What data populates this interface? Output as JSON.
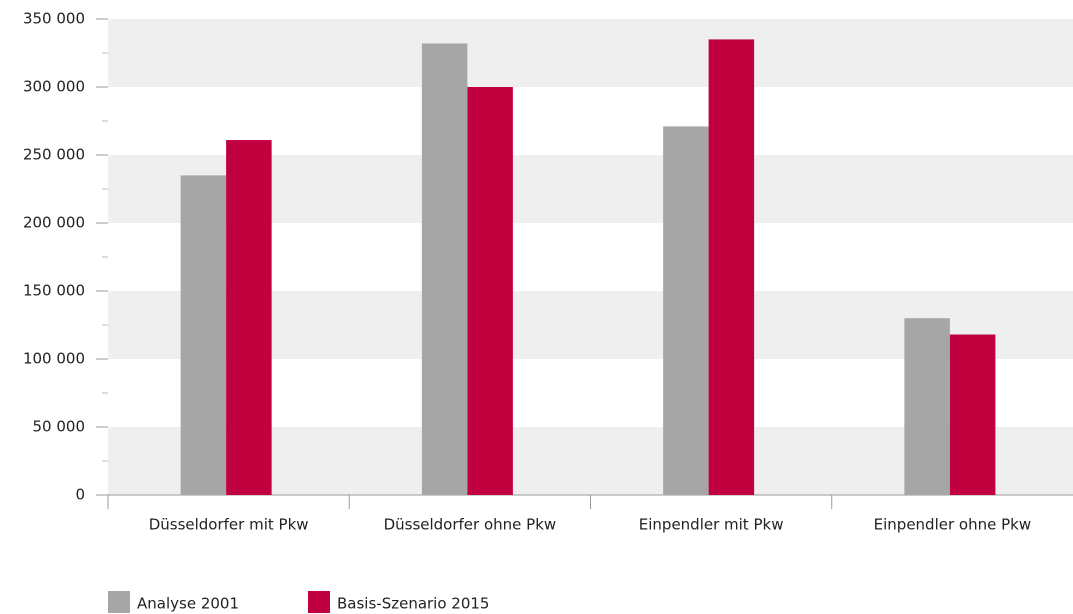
{
  "chart_data": {
    "type": "bar",
    "categories": [
      "Düsseldorfer mit Pkw",
      "Düsseldorfer ohne Pkw",
      "Einpendler mit Pkw",
      "Einpendler ohne Pkw"
    ],
    "series": [
      {
        "name": "Analyse 2001",
        "color": "#a6a6a6",
        "values": [
          235000,
          332000,
          271000,
          130000
        ]
      },
      {
        "name": "Basis-Szenario 2015",
        "color": "#c0003f",
        "values": [
          261000,
          300000,
          335000,
          118000
        ]
      }
    ],
    "ylim": [
      0,
      350000
    ],
    "yticks": [
      0,
      {
        "value": 50000,
        "label": "50 000"
      },
      {
        "value": 100000,
        "label": "100 000"
      },
      {
        "value": 150000,
        "label": "150 000"
      },
      {
        "value": 200000,
        "label": "200 000"
      },
      {
        "value": 250000,
        "label": "250 000"
      },
      {
        "value": 300000,
        "label": "300 000"
      },
      {
        "value": 350000,
        "label": "350 000"
      }
    ],
    "yminor_ticks": [
      25000,
      75000,
      125000,
      175000,
      225000,
      275000,
      325000
    ],
    "band_color": "#efefef",
    "legend": "bottom-left"
  }
}
